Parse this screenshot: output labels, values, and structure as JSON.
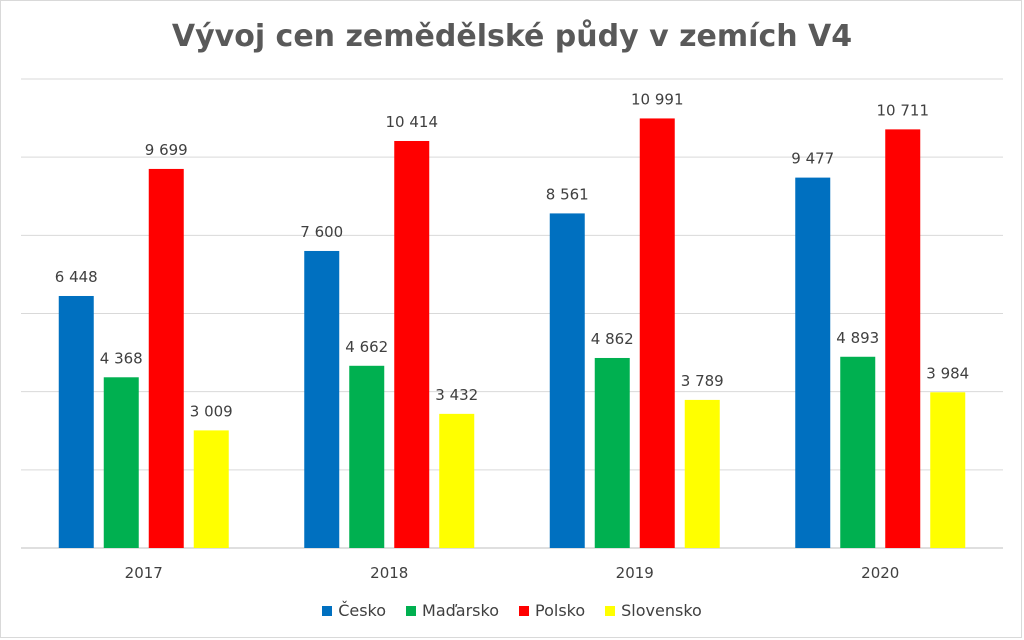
{
  "chart_data": {
    "type": "bar",
    "title": "Vývoj cen zemědělské půdy v zemích V4",
    "xlabel": "",
    "ylabel": "",
    "categories": [
      "2017",
      "2018",
      "2019",
      "2020"
    ],
    "ylim": [
      0,
      12000
    ],
    "y_tick_labels_shown": false,
    "grid": true,
    "legend_position": "bottom",
    "series": [
      {
        "name": "Česko",
        "color": "#0070C0",
        "values": [
          6448,
          7600,
          8561,
          9477
        ],
        "labels": [
          "6 448",
          "7 600",
          "8 561",
          "9 477"
        ]
      },
      {
        "name": "Maďarsko",
        "color": "#00B050",
        "values": [
          4368,
          4662,
          4862,
          4893
        ],
        "labels": [
          "4 368",
          "4 662",
          "4 862",
          "4 893"
        ]
      },
      {
        "name": "Polsko",
        "color": "#FF0000",
        "values": [
          9699,
          10414,
          10991,
          10711
        ],
        "labels": [
          "9 699",
          "10 414",
          "10 991",
          "10 711"
        ]
      },
      {
        "name": "Slovensko",
        "color": "#FFFF00",
        "values": [
          3009,
          3432,
          3789,
          3984
        ],
        "labels": [
          "3 009",
          "3 432",
          "3 789",
          "3 984"
        ]
      }
    ]
  }
}
